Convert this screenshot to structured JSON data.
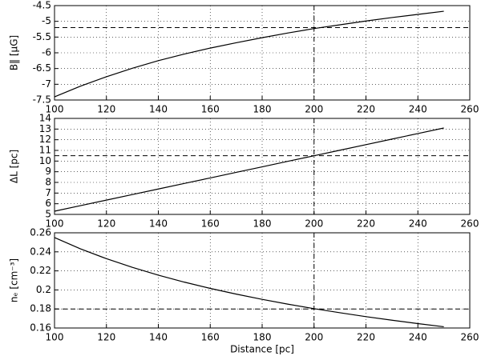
{
  "chart_data": [
    {
      "type": "line",
      "ylabel": "B‖ [μG]",
      "x": [
        100,
        110,
        120,
        130,
        140,
        150,
        160,
        170,
        180,
        190,
        200,
        210,
        220,
        230,
        240,
        250
      ],
      "values": [
        -7.4,
        -7.06,
        -6.76,
        -6.49,
        -6.25,
        -6.04,
        -5.85,
        -5.68,
        -5.52,
        -5.37,
        -5.23,
        -5.11,
        -4.99,
        -4.88,
        -4.78,
        -4.68
      ],
      "color": "#000000",
      "xlim": [
        100,
        260
      ],
      "xticks": [
        100,
        120,
        140,
        160,
        180,
        200,
        220,
        240,
        260
      ],
      "ylim": [
        -7.5,
        -4.5
      ],
      "yticks": [
        -7.5,
        -7.0,
        -6.5,
        -6.0,
        -5.5,
        -5.0,
        -4.5
      ],
      "hline": -5.2,
      "vline": 200,
      "grid": true
    },
    {
      "type": "line",
      "ylabel": "ΔL [pc]",
      "x": [
        100,
        110,
        120,
        130,
        140,
        150,
        160,
        170,
        180,
        190,
        200,
        210,
        220,
        230,
        240,
        250
      ],
      "values": [
        5.3,
        5.82,
        6.34,
        6.86,
        7.38,
        7.9,
        8.42,
        8.94,
        9.46,
        9.98,
        10.5,
        11.02,
        11.54,
        12.06,
        12.58,
        13.1
      ],
      "color": "#000000",
      "xlim": [
        100,
        260
      ],
      "xticks": [
        100,
        120,
        140,
        160,
        180,
        200,
        220,
        240,
        260
      ],
      "ylim": [
        5,
        14
      ],
      "yticks": [
        5,
        6,
        7,
        8,
        9,
        10,
        11,
        12,
        13,
        14
      ],
      "hline": 10.5,
      "vline": 200,
      "grid": true
    },
    {
      "type": "line",
      "ylabel": "nₑ [cm⁻³]",
      "xlabel": "Distance [pc]",
      "x": [
        100,
        110,
        120,
        130,
        140,
        150,
        160,
        170,
        180,
        190,
        200,
        210,
        220,
        230,
        240,
        250
      ],
      "values": [
        0.255,
        0.2431,
        0.2328,
        0.2237,
        0.2155,
        0.2082,
        0.2016,
        0.1956,
        0.1901,
        0.185,
        0.1803,
        0.176,
        0.1719,
        0.1682,
        0.1646,
        0.1613
      ],
      "color": "#000000",
      "xlim": [
        100,
        260
      ],
      "xticks": [
        100,
        120,
        140,
        160,
        180,
        200,
        220,
        240,
        260
      ],
      "ylim": [
        0.16,
        0.26
      ],
      "yticks": [
        0.16,
        0.18,
        0.2,
        0.22,
        0.24,
        0.26
      ],
      "hline": 0.18,
      "vline": 200,
      "grid": true
    }
  ]
}
